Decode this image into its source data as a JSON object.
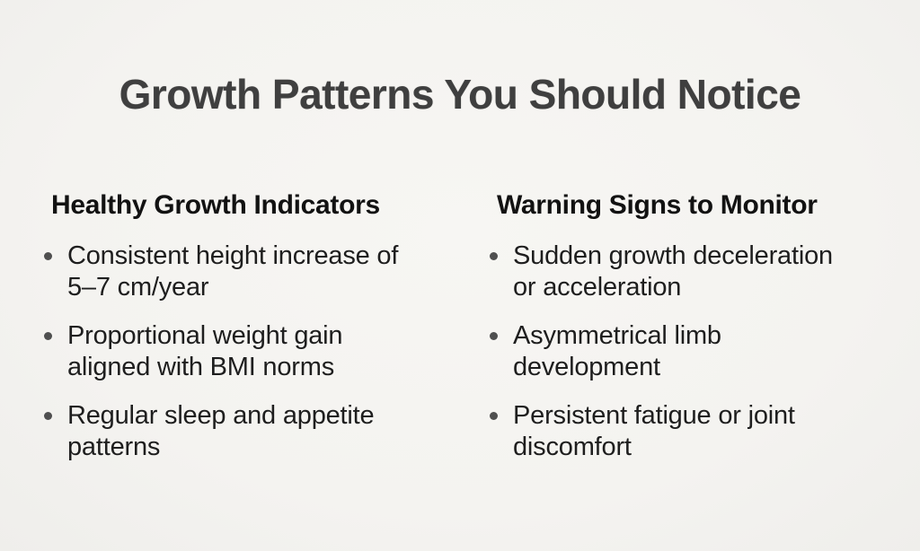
{
  "slide": {
    "title": "Growth Patterns You Should Notice",
    "columns": [
      {
        "id": "healthy-growth-indicators",
        "heading": "Healthy Growth Indicators",
        "items": [
          "Consistent height increase of 5–7 cm/year",
          "Proportional weight gain aligned with BMI norms",
          "Regular sleep and appetite patterns"
        ]
      },
      {
        "id": "warning-signs-to-monitor",
        "heading": "Warning Signs to Monitor",
        "items": [
          "Sudden growth deceleration or acceleration",
          "Asymmetrical limb development",
          "Persistent fatigue or joint discomfort"
        ]
      }
    ],
    "colors": {
      "background": "#f4f3f0",
      "title_text": "#3f3f3f",
      "heading_text": "#121212",
      "body_text": "#1e1e1e",
      "bullet_dot": "#4f4f4f"
    }
  }
}
